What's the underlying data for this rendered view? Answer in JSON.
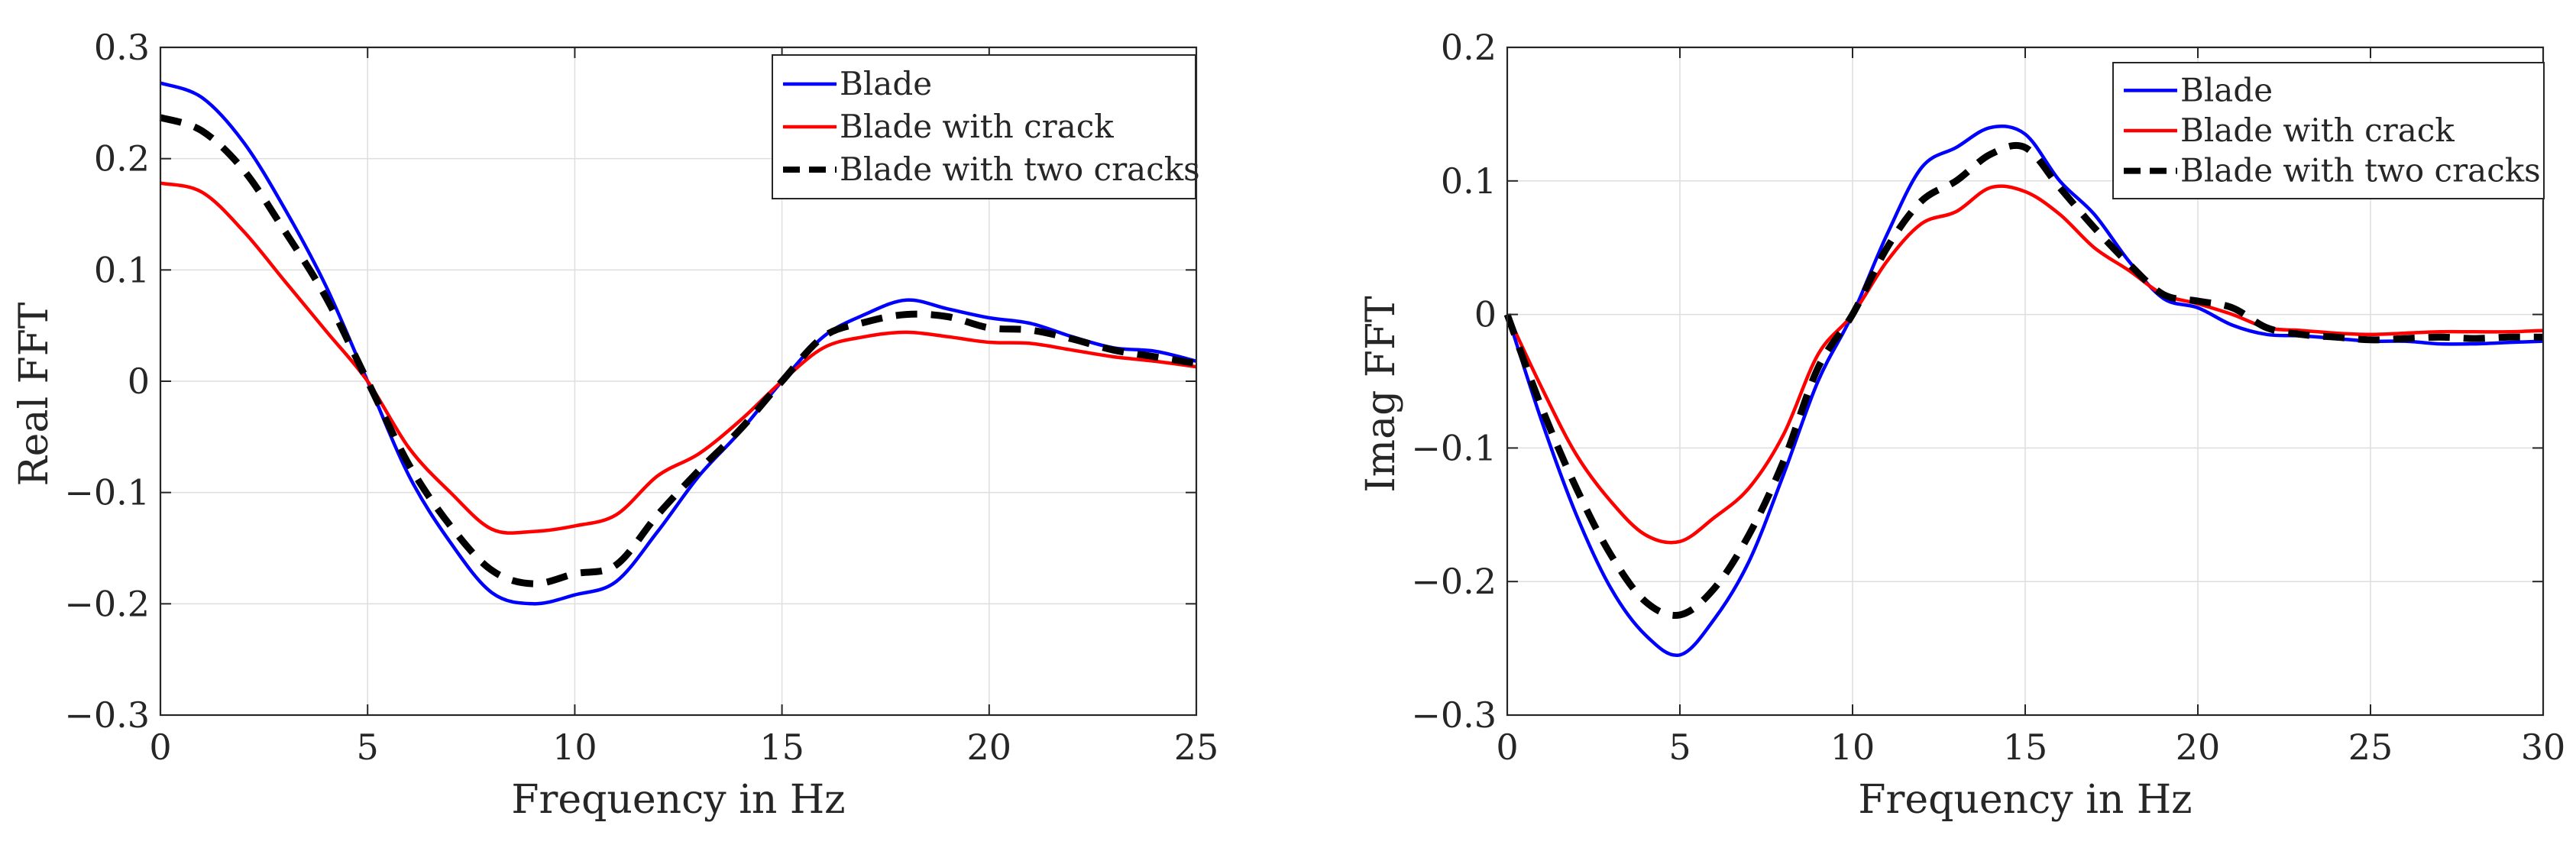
{
  "chart_data": [
    {
      "type": "line",
      "xlabel": "Frequency in Hz",
      "ylabel": "Real FFT",
      "xlim": [
        0,
        25
      ],
      "ylim": [
        -0.3,
        0.3
      ],
      "xticks": [
        0,
        5,
        10,
        15,
        20,
        25
      ],
      "xtick_labels": [
        "0",
        "5",
        "10",
        "15",
        "20",
        "25"
      ],
      "yticks": [
        -0.3,
        -0.2,
        -0.1,
        0,
        0.1,
        0.2,
        0.3
      ],
      "ytick_labels": [
        "−0.3",
        "−0.2",
        "−0.1",
        "0",
        "0.1",
        "0.2",
        "0.3"
      ],
      "grid": true,
      "legend_position": "top-right",
      "series": [
        {
          "name": "Blade",
          "color": "#0000ff",
          "dash": "solid",
          "x": [
            0,
            1,
            2,
            3,
            4,
            5,
            6,
            7,
            8,
            9,
            10,
            11,
            12,
            13,
            14,
            15,
            16,
            17,
            18,
            19,
            20,
            21,
            22,
            23,
            24,
            25
          ],
          "y": [
            0.268,
            0.255,
            0.215,
            0.155,
            0.085,
            0.0,
            -0.085,
            -0.145,
            -0.19,
            -0.2,
            -0.192,
            -0.18,
            -0.135,
            -0.085,
            -0.045,
            0.0,
            0.04,
            0.06,
            0.073,
            0.065,
            0.057,
            0.052,
            0.04,
            0.03,
            0.027,
            0.018
          ]
        },
        {
          "name": "Blade with crack",
          "color": "#ff0000",
          "dash": "solid",
          "x": [
            0,
            1,
            2,
            3,
            4,
            5,
            6,
            7,
            8,
            9,
            10,
            11,
            12,
            13,
            14,
            15,
            16,
            17,
            18,
            19,
            20,
            21,
            22,
            23,
            24,
            25
          ],
          "y": [
            0.178,
            0.17,
            0.135,
            0.09,
            0.045,
            0.0,
            -0.06,
            -0.1,
            -0.133,
            -0.135,
            -0.13,
            -0.12,
            -0.085,
            -0.065,
            -0.035,
            0.0,
            0.03,
            0.04,
            0.044,
            0.04,
            0.035,
            0.034,
            0.028,
            0.022,
            0.018,
            0.013
          ]
        },
        {
          "name": "Blade with two cracks",
          "color": "#000000",
          "dash": "dashed",
          "x": [
            0,
            1,
            2,
            3,
            4,
            5,
            6,
            7,
            8,
            9,
            10,
            11,
            12,
            13,
            14,
            15,
            16,
            17,
            18,
            19,
            20,
            21,
            22,
            23,
            24,
            25
          ],
          "y": [
            0.237,
            0.225,
            0.19,
            0.135,
            0.075,
            0.0,
            -0.075,
            -0.13,
            -0.17,
            -0.182,
            -0.173,
            -0.165,
            -0.12,
            -0.08,
            -0.043,
            0.0,
            0.04,
            0.053,
            0.06,
            0.058,
            0.048,
            0.046,
            0.038,
            0.028,
            0.022,
            0.016
          ]
        }
      ]
    },
    {
      "type": "line",
      "xlabel": "Frequency in Hz",
      "ylabel": "Imag FFT",
      "xlim": [
        0,
        30
      ],
      "ylim": [
        -0.3,
        0.2
      ],
      "xticks": [
        0,
        5,
        10,
        15,
        20,
        25,
        30
      ],
      "xtick_labels": [
        "0",
        "5",
        "10",
        "15",
        "20",
        "25",
        "30"
      ],
      "yticks": [
        -0.3,
        -0.2,
        -0.1,
        0,
        0.1,
        0.2
      ],
      "ytick_labels": [
        "−0.3",
        "−0.2",
        "−0.1",
        "0",
        "0.1",
        "0.2"
      ],
      "grid": true,
      "legend_position": "top-right",
      "series": [
        {
          "name": "Blade",
          "color": "#0000ff",
          "dash": "solid",
          "x": [
            0,
            1,
            2,
            3,
            4,
            5,
            6,
            7,
            8,
            9,
            10,
            11,
            12,
            13,
            14,
            15,
            16,
            17,
            18,
            19,
            20,
            21,
            22,
            23,
            24,
            25,
            26,
            27,
            28,
            29,
            30
          ],
          "y": [
            0.0,
            -0.08,
            -0.15,
            -0.205,
            -0.24,
            -0.255,
            -0.228,
            -0.185,
            -0.12,
            -0.05,
            0.0,
            0.06,
            0.11,
            0.125,
            0.14,
            0.135,
            0.1,
            0.075,
            0.04,
            0.012,
            0.005,
            -0.008,
            -0.015,
            -0.016,
            -0.018,
            -0.02,
            -0.02,
            -0.022,
            -0.022,
            -0.021,
            -0.02
          ]
        },
        {
          "name": "Blade with crack",
          "color": "#ff0000",
          "dash": "solid",
          "x": [
            0,
            1,
            2,
            3,
            4,
            5,
            6,
            7,
            8,
            9,
            10,
            11,
            12,
            13,
            14,
            15,
            16,
            17,
            18,
            19,
            20,
            21,
            22,
            23,
            24,
            25,
            26,
            27,
            28,
            29,
            30
          ],
          "y": [
            0.0,
            -0.055,
            -0.105,
            -0.14,
            -0.165,
            -0.17,
            -0.152,
            -0.13,
            -0.09,
            -0.03,
            0.0,
            0.04,
            0.068,
            0.077,
            0.095,
            0.092,
            0.075,
            0.05,
            0.033,
            0.015,
            0.008,
            0.0,
            -0.01,
            -0.012,
            -0.014,
            -0.015,
            -0.014,
            -0.013,
            -0.013,
            -0.013,
            -0.012
          ]
        },
        {
          "name": "Blade with two cracks",
          "color": "#000000",
          "dash": "dashed",
          "x": [
            0,
            1,
            2,
            3,
            4,
            5,
            6,
            7,
            8,
            9,
            10,
            11,
            12,
            13,
            14,
            15,
            16,
            17,
            18,
            19,
            20,
            21,
            22,
            23,
            24,
            25,
            26,
            27,
            28,
            29,
            30
          ],
          "y": [
            0.0,
            -0.07,
            -0.13,
            -0.18,
            -0.215,
            -0.225,
            -0.205,
            -0.165,
            -0.11,
            -0.04,
            0.0,
            0.05,
            0.085,
            0.1,
            0.12,
            0.125,
            0.095,
            0.065,
            0.038,
            0.015,
            0.01,
            0.005,
            -0.01,
            -0.015,
            -0.017,
            -0.019,
            -0.018,
            -0.017,
            -0.018,
            -0.017,
            -0.017
          ]
        }
      ]
    }
  ]
}
